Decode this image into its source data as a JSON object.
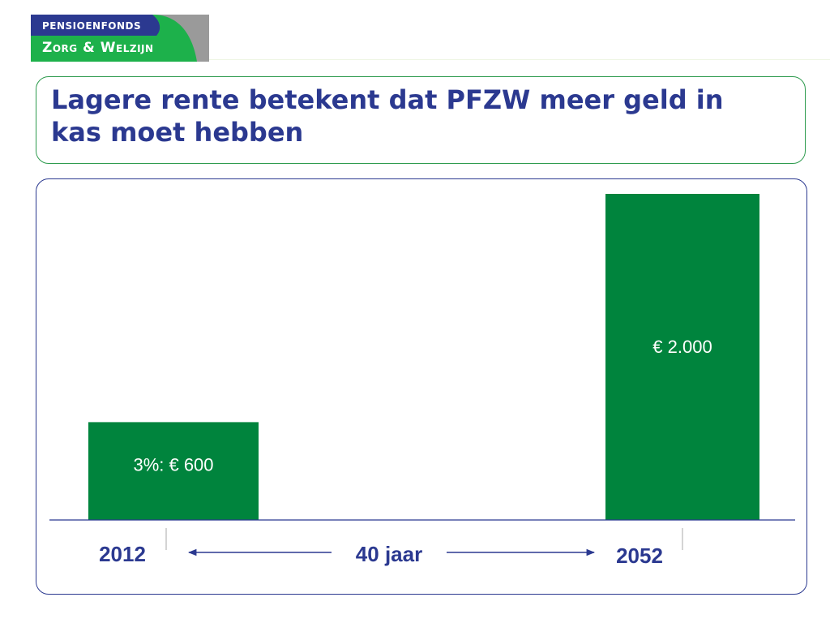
{
  "logo": {
    "line1": "PENSIOENFONDS",
    "line2": "Zorg & Welzijn",
    "colors": {
      "navy": "#2b3990",
      "green": "#1db14b",
      "gray": "#9a9a9a"
    }
  },
  "title": "Lagere rente betekent dat PFZW meer geld in kas moet hebben",
  "chart_data": {
    "type": "bar",
    "categories": [
      "2012",
      "2052"
    ],
    "values": [
      600,
      2000
    ],
    "bar_labels": [
      "3%: € 600",
      "€ 2.000"
    ],
    "span_label": "40 jaar",
    "ylim": [
      0,
      2000
    ],
    "grid": false,
    "colors": {
      "bar": "#00843d",
      "text": "#2b3990",
      "axis": "#2b3990"
    }
  }
}
